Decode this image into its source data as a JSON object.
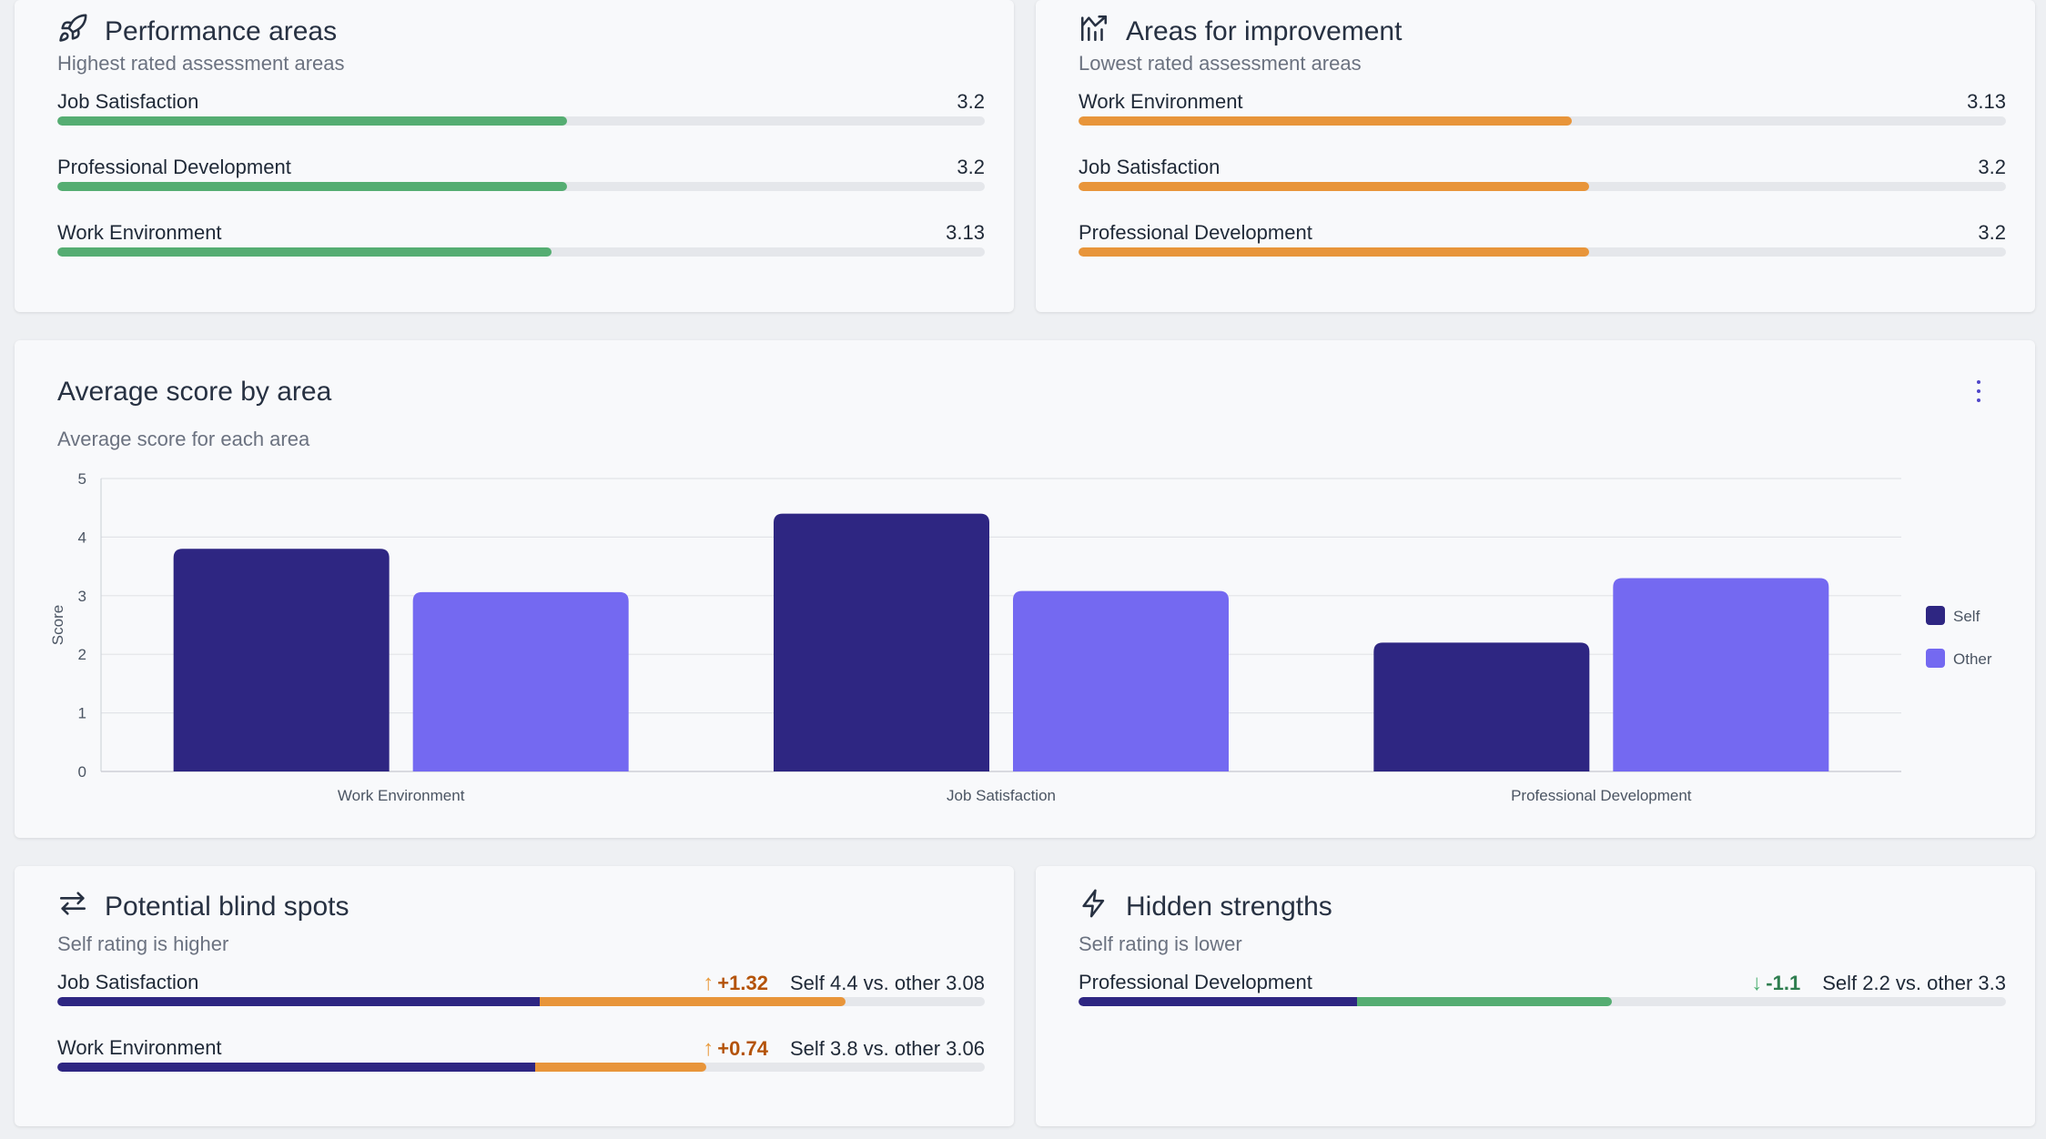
{
  "performance": {
    "title": "Performance areas",
    "subtitle": "Highest rated assessment areas",
    "bar_color": "#55ad72",
    "items": [
      {
        "label": "Job Satisfaction",
        "value": "3.2",
        "fraction": 0.55
      },
      {
        "label": "Professional Development",
        "value": "3.2",
        "fraction": 0.55
      },
      {
        "label": "Work Environment",
        "value": "3.13",
        "fraction": 0.533
      }
    ]
  },
  "improvement": {
    "title": "Areas for improvement",
    "subtitle": "Lowest rated assessment areas",
    "bar_color": "#e8953a",
    "items": [
      {
        "label": "Work Environment",
        "value": "3.13",
        "fraction": 0.532
      },
      {
        "label": "Job Satisfaction",
        "value": "3.2",
        "fraction": 0.551
      },
      {
        "label": "Professional Development",
        "value": "3.2",
        "fraction": 0.551
      }
    ]
  },
  "average": {
    "title": "Average score by area",
    "subtitle": "Average score for each area",
    "menu_icon": "kebab-menu-icon"
  },
  "chart_data": {
    "type": "bar",
    "categories": [
      "Work Environment",
      "Job Satisfaction",
      "Professional Development"
    ],
    "series": [
      {
        "name": "Self",
        "values": [
          3.8,
          4.4,
          2.2
        ],
        "color": "#2e2682"
      },
      {
        "name": "Other",
        "values": [
          3.06,
          3.08,
          3.3
        ],
        "color": "#7469f1"
      }
    ],
    "ylabel": "Score",
    "ylim": [
      0,
      5
    ],
    "yticks": [
      "0",
      "1",
      "2",
      "3",
      "4",
      "5"
    ],
    "grid": true,
    "legend": "right"
  },
  "blindspots": {
    "title": "Potential blind spots",
    "subtitle": "Self rating is higher",
    "items": [
      {
        "label": "Job Satisfaction",
        "delta": "+1.32",
        "arrow": "↑",
        "compare": "Self 4.4 vs. other 3.08",
        "self_fraction": 0.52,
        "extra_fraction": 0.33
      },
      {
        "label": "Work Environment",
        "delta": "+0.74",
        "arrow": "↑",
        "compare": "Self 3.8 vs. other 3.06",
        "self_fraction": 0.515,
        "extra_fraction": 0.185
      }
    ],
    "self_color": "#2e2682",
    "extra_color": "#e8953a"
  },
  "hidden": {
    "title": "Hidden strengths",
    "subtitle": "Self rating is lower",
    "items": [
      {
        "label": "Professional Development",
        "delta": "-1.1",
        "arrow": "↓",
        "compare": "Self 2.2 vs. other 3.3",
        "self_fraction": 0.3,
        "extra_fraction": 0.275
      }
    ],
    "self_color": "#2e2682",
    "extra_color": "#55ad72"
  }
}
